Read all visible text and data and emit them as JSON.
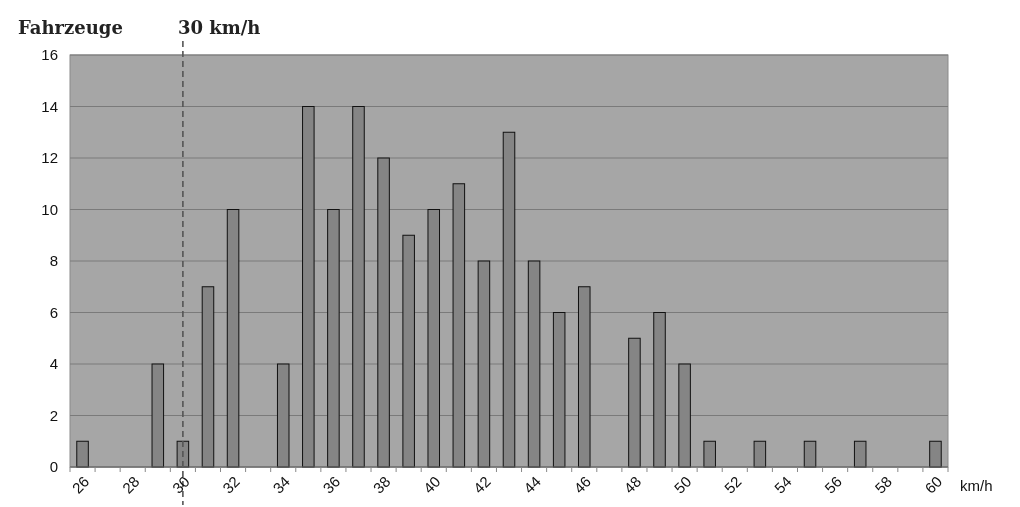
{
  "chart_data": {
    "type": "bar",
    "ylabel": "Fahrzeuge",
    "xlabel": "km/h",
    "categories": [
      "26",
      null,
      "28",
      null,
      "30",
      null,
      "32",
      null,
      "34",
      null,
      "36",
      null,
      "38",
      null,
      "40",
      null,
      "42",
      null,
      "44",
      null,
      "46",
      null,
      "48",
      null,
      "50",
      null,
      "52",
      null,
      "54",
      null,
      "56",
      null,
      "58",
      null,
      "60"
    ],
    "values": [
      1,
      0,
      0,
      4,
      1,
      7,
      10,
      0,
      4,
      14,
      10,
      14,
      12,
      9,
      10,
      11,
      8,
      13,
      8,
      6,
      7,
      0,
      5,
      6,
      4,
      1,
      0,
      1,
      0,
      1,
      0,
      1,
      0,
      0,
      1
    ],
    "color": "#858585",
    "ylim": [
      0,
      16
    ],
    "yticks": [
      0,
      2,
      4,
      6,
      8,
      10,
      12,
      14,
      16
    ],
    "grid": "y",
    "ref_lines": [
      {
        "axis": "x",
        "value": "30",
        "label": "30 km/h",
        "line_style": "dashed"
      }
    ]
  }
}
